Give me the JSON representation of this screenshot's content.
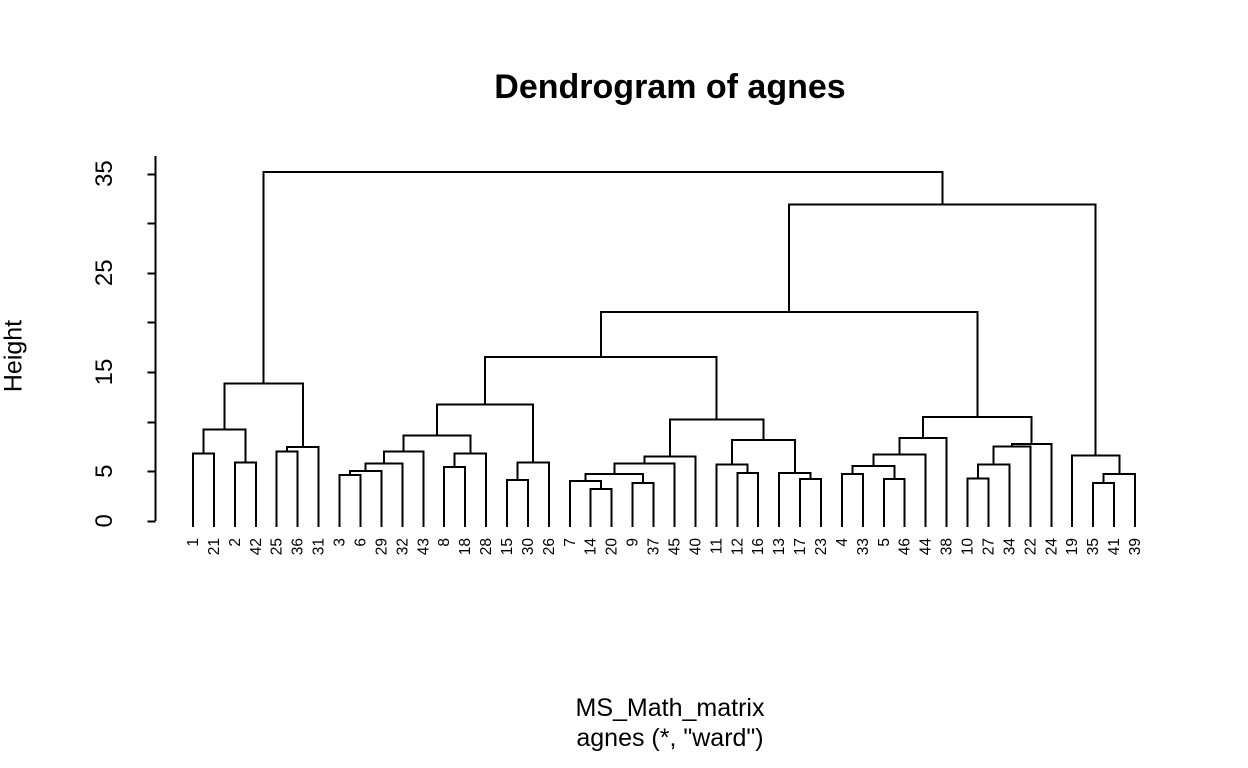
{
  "title": "Dendrogram of agnes",
  "ylab": "Height",
  "xlab": {
    "line1": "MS_Math_matrix",
    "line2": "agnes (*, \"ward\")"
  },
  "colors": {
    "line": "#000000",
    "text": "#000000",
    "background": "#ffffff"
  },
  "chart_data": {
    "type": "dendrogram",
    "method_note": "agnes ward clustering",
    "ylabel": "Height",
    "ylim": [
      0,
      36.8
    ],
    "axis": {
      "ticks": [
        0,
        5,
        10,
        15,
        20,
        25,
        30,
        35
      ],
      "labeled_ticks": [
        0,
        5,
        15,
        25,
        35
      ]
    },
    "leaf_order": [
      "1",
      "21",
      "2",
      "42",
      "25",
      "36",
      "31",
      "3",
      "6",
      "29",
      "32",
      "43",
      "8",
      "18",
      "28",
      "15",
      "30",
      "26",
      "7",
      "14",
      "20",
      "9",
      "37",
      "45",
      "40",
      "11",
      "12",
      "16",
      "13",
      "17",
      "23",
      "4",
      "33",
      "5",
      "46",
      "44",
      "38",
      "10",
      "27",
      "34",
      "22",
      "24",
      "19",
      "35",
      "41",
      "39"
    ],
    "tree": {
      "h": 35.15,
      "c": [
        {
          "h": 13.85,
          "c": [
            {
              "h": 9.2,
              "c": [
                {
                  "h": 6.8,
                  "c": [
                    "1",
                    "21"
                  ]
                },
                {
                  "h": 5.9,
                  "c": [
                    "2",
                    "42"
                  ]
                }
              ]
            },
            {
              "h": 7.45,
              "c": [
                {
                  "h": 7.0,
                  "c": [
                    "25",
                    "36"
                  ]
                },
                "31"
              ]
            }
          ]
        },
        {
          "h": 31.9,
          "c": [
            {
              "h": 21.05,
              "c": [
                {
                  "h": 16.5,
                  "c": [
                    {
                      "h": 11.7,
                      "c": [
                        {
                          "h": 8.6,
                          "c": [
                            {
                              "h": 7.0,
                              "c": [
                                {
                                  "h": 5.8,
                                  "c": [
                                    {
                                      "h": 5.0,
                                      "c": [
                                        {
                                          "h": 4.6,
                                          "c": [
                                            "3",
                                            "6"
                                          ]
                                        },
                                        "29"
                                      ]
                                    },
                                    "32"
                                  ]
                                },
                                "43"
                              ]
                            },
                            {
                              "h": 6.8,
                              "c": [
                                {
                                  "h": 5.4,
                                  "c": [
                                    "8",
                                    "18"
                                  ]
                                },
                                "28"
                              ]
                            }
                          ]
                        },
                        {
                          "h": 5.9,
                          "c": [
                            {
                              "h": 4.1,
                              "c": [
                                "15",
                                "30"
                              ]
                            },
                            "26"
                          ]
                        }
                      ]
                    },
                    {
                      "h": 10.2,
                      "c": [
                        {
                          "h": 6.5,
                          "c": [
                            {
                              "h": 5.8,
                              "c": [
                                {
                                  "h": 4.7,
                                  "c": [
                                    {
                                      "h": 4.0,
                                      "c": [
                                        "7",
                                        {
                                          "h": 3.2,
                                          "c": [
                                            "14",
                                            "20"
                                          ]
                                        }
                                      ]
                                    },
                                    {
                                      "h": 3.8,
                                      "c": [
                                        "9",
                                        "37"
                                      ]
                                    }
                                  ]
                                },
                                "45"
                              ]
                            },
                            "40"
                          ]
                        },
                        {
                          "h": 8.15,
                          "c": [
                            {
                              "h": 5.7,
                              "c": [
                                "11",
                                {
                                  "h": 4.8,
                                  "c": [
                                    "12",
                                    "16"
                                  ]
                                }
                              ]
                            },
                            {
                              "h": 4.8,
                              "c": [
                                "13",
                                {
                                  "h": 4.2,
                                  "c": [
                                    "17",
                                    "23"
                                  ]
                                }
                              ]
                            }
                          ]
                        }
                      ]
                    }
                  ]
                },
                {
                  "h": 10.45,
                  "c": [
                    {
                      "h": 8.35,
                      "c": [
                        {
                          "h": 6.7,
                          "c": [
                            {
                              "h": 5.5,
                              "c": [
                                {
                                  "h": 4.7,
                                  "c": [
                                    "4",
                                    "33"
                                  ]
                                },
                                {
                                  "h": 4.2,
                                  "c": [
                                    "5",
                                    "46"
                                  ]
                                }
                              ]
                            },
                            "44"
                          ]
                        },
                        "38"
                      ]
                    },
                    {
                      "h": 7.75,
                      "c": [
                        {
                          "h": 7.5,
                          "c": [
                            {
                              "h": 5.7,
                              "c": [
                                {
                                  "h": 4.25,
                                  "c": [
                                    "10",
                                    "27"
                                  ]
                                },
                                "34"
                              ]
                            },
                            "22"
                          ]
                        },
                        "24"
                      ]
                    }
                  ]
                }
              ]
            },
            {
              "h": 6.6,
              "c": [
                "19",
                {
                  "h": 4.7,
                  "c": [
                    {
                      "h": 3.8,
                      "c": [
                        "35",
                        "41"
                      ]
                    },
                    "39"
                  ]
                }
              ]
            }
          ]
        }
      ]
    }
  }
}
